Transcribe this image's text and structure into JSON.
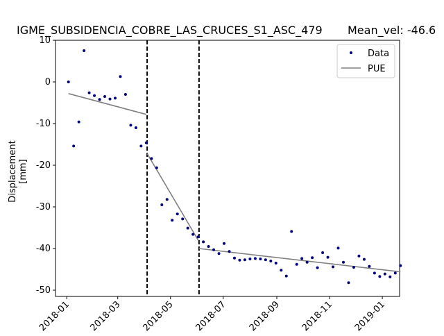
{
  "chart_data": {
    "type": "scatter",
    "title": "IGME_SUBSIDENCIA_COBRE_LAS_CRUCES_S1_ASC_479",
    "annotation": "Mean_vel: -46.6",
    "xlabel": "",
    "ylabel": "Displacement [mm]",
    "xlim": [
      "2017-12-19",
      "2019-01-21"
    ],
    "ylim": [
      -51.5,
      10
    ],
    "x_ticks": [
      "2018-01",
      "2018-03",
      "2018-05",
      "2018-07",
      "2018-09",
      "2018-11",
      "2019-01"
    ],
    "y_ticks": [
      10,
      0,
      -10,
      -20,
      -30,
      -40,
      -50
    ],
    "grid": false,
    "legend_position": "top-right",
    "vertical_lines": [
      "2018-04-04",
      "2018-06-03"
    ],
    "colors": {
      "data": "#00007f",
      "pue": "#808080",
      "vline": "#000000"
    },
    "series": [
      {
        "name": "Data",
        "style": "points",
        "points": [
          [
            "2018-01-03",
            0.0
          ],
          [
            "2018-01-09",
            -15.4
          ],
          [
            "2018-01-15",
            -9.6
          ],
          [
            "2018-01-21",
            7.5
          ],
          [
            "2018-01-27",
            -2.6
          ],
          [
            "2018-02-02",
            -3.3
          ],
          [
            "2018-02-08",
            -4.2
          ],
          [
            "2018-02-14",
            -3.5
          ],
          [
            "2018-02-20",
            -4.1
          ],
          [
            "2018-02-26",
            -3.9
          ],
          [
            "2018-03-04",
            1.3
          ],
          [
            "2018-03-10",
            -3.0
          ],
          [
            "2018-03-16",
            -10.4
          ],
          [
            "2018-03-22",
            -11.0
          ],
          [
            "2018-03-28",
            -15.4
          ],
          [
            "2018-04-03",
            -14.6
          ],
          [
            "2018-04-09",
            -18.4
          ],
          [
            "2018-04-15",
            -20.6
          ],
          [
            "2018-04-21",
            -29.5
          ],
          [
            "2018-04-27",
            -28.2
          ],
          [
            "2018-05-03",
            -33.2
          ],
          [
            "2018-05-09",
            -31.7
          ],
          [
            "2018-05-15",
            -32.9
          ],
          [
            "2018-05-21",
            -35.1
          ],
          [
            "2018-05-27",
            -36.6
          ],
          [
            "2018-06-02",
            -37.2
          ],
          [
            "2018-06-08",
            -38.4
          ],
          [
            "2018-06-14",
            -39.5
          ],
          [
            "2018-06-20",
            -40.3
          ],
          [
            "2018-06-26",
            -41.2
          ],
          [
            "2018-07-02",
            -38.8
          ],
          [
            "2018-07-08",
            -40.7
          ],
          [
            "2018-07-14",
            -42.3
          ],
          [
            "2018-07-20",
            -42.8
          ],
          [
            "2018-07-26",
            -42.7
          ],
          [
            "2018-08-01",
            -42.5
          ],
          [
            "2018-08-07",
            -42.4
          ],
          [
            "2018-08-13",
            -42.5
          ],
          [
            "2018-08-19",
            -42.7
          ],
          [
            "2018-08-25",
            -43.0
          ],
          [
            "2018-08-31",
            -43.5
          ],
          [
            "2018-09-06",
            -45.2
          ],
          [
            "2018-09-12",
            -46.6
          ],
          [
            "2018-09-18",
            -35.9
          ],
          [
            "2018-09-24",
            -43.8
          ],
          [
            "2018-09-30",
            -42.4
          ],
          [
            "2018-10-06",
            -43.3
          ],
          [
            "2018-10-12",
            -42.2
          ],
          [
            "2018-10-18",
            -44.6
          ],
          [
            "2018-10-24",
            -41.0
          ],
          [
            "2018-10-30",
            -42.1
          ],
          [
            "2018-11-05",
            -44.4
          ],
          [
            "2018-11-11",
            -39.9
          ],
          [
            "2018-11-17",
            -43.3
          ],
          [
            "2018-11-23",
            -48.2
          ],
          [
            "2018-11-29",
            -44.5
          ],
          [
            "2018-12-05",
            -41.8
          ],
          [
            "2018-12-11",
            -42.6
          ],
          [
            "2018-12-17",
            -44.3
          ],
          [
            "2018-12-23",
            -45.9
          ],
          [
            "2018-12-29",
            -46.7
          ],
          [
            "2019-01-04",
            -46.1
          ],
          [
            "2019-01-10",
            -46.8
          ],
          [
            "2019-01-16",
            -45.9
          ],
          [
            "2019-01-22",
            -44.1
          ]
        ]
      },
      {
        "name": "PUE",
        "style": "line",
        "segments": [
          [
            [
              "2018-01-03",
              -2.8
            ],
            [
              "2018-04-03",
              -7.8
            ]
          ],
          [
            [
              "2018-04-04",
              -17.2
            ],
            [
              "2018-06-02",
              -38.0
            ]
          ],
          [
            [
              "2018-06-03",
              -40.0
            ],
            [
              "2019-01-22",
              -45.6
            ]
          ]
        ]
      }
    ]
  }
}
